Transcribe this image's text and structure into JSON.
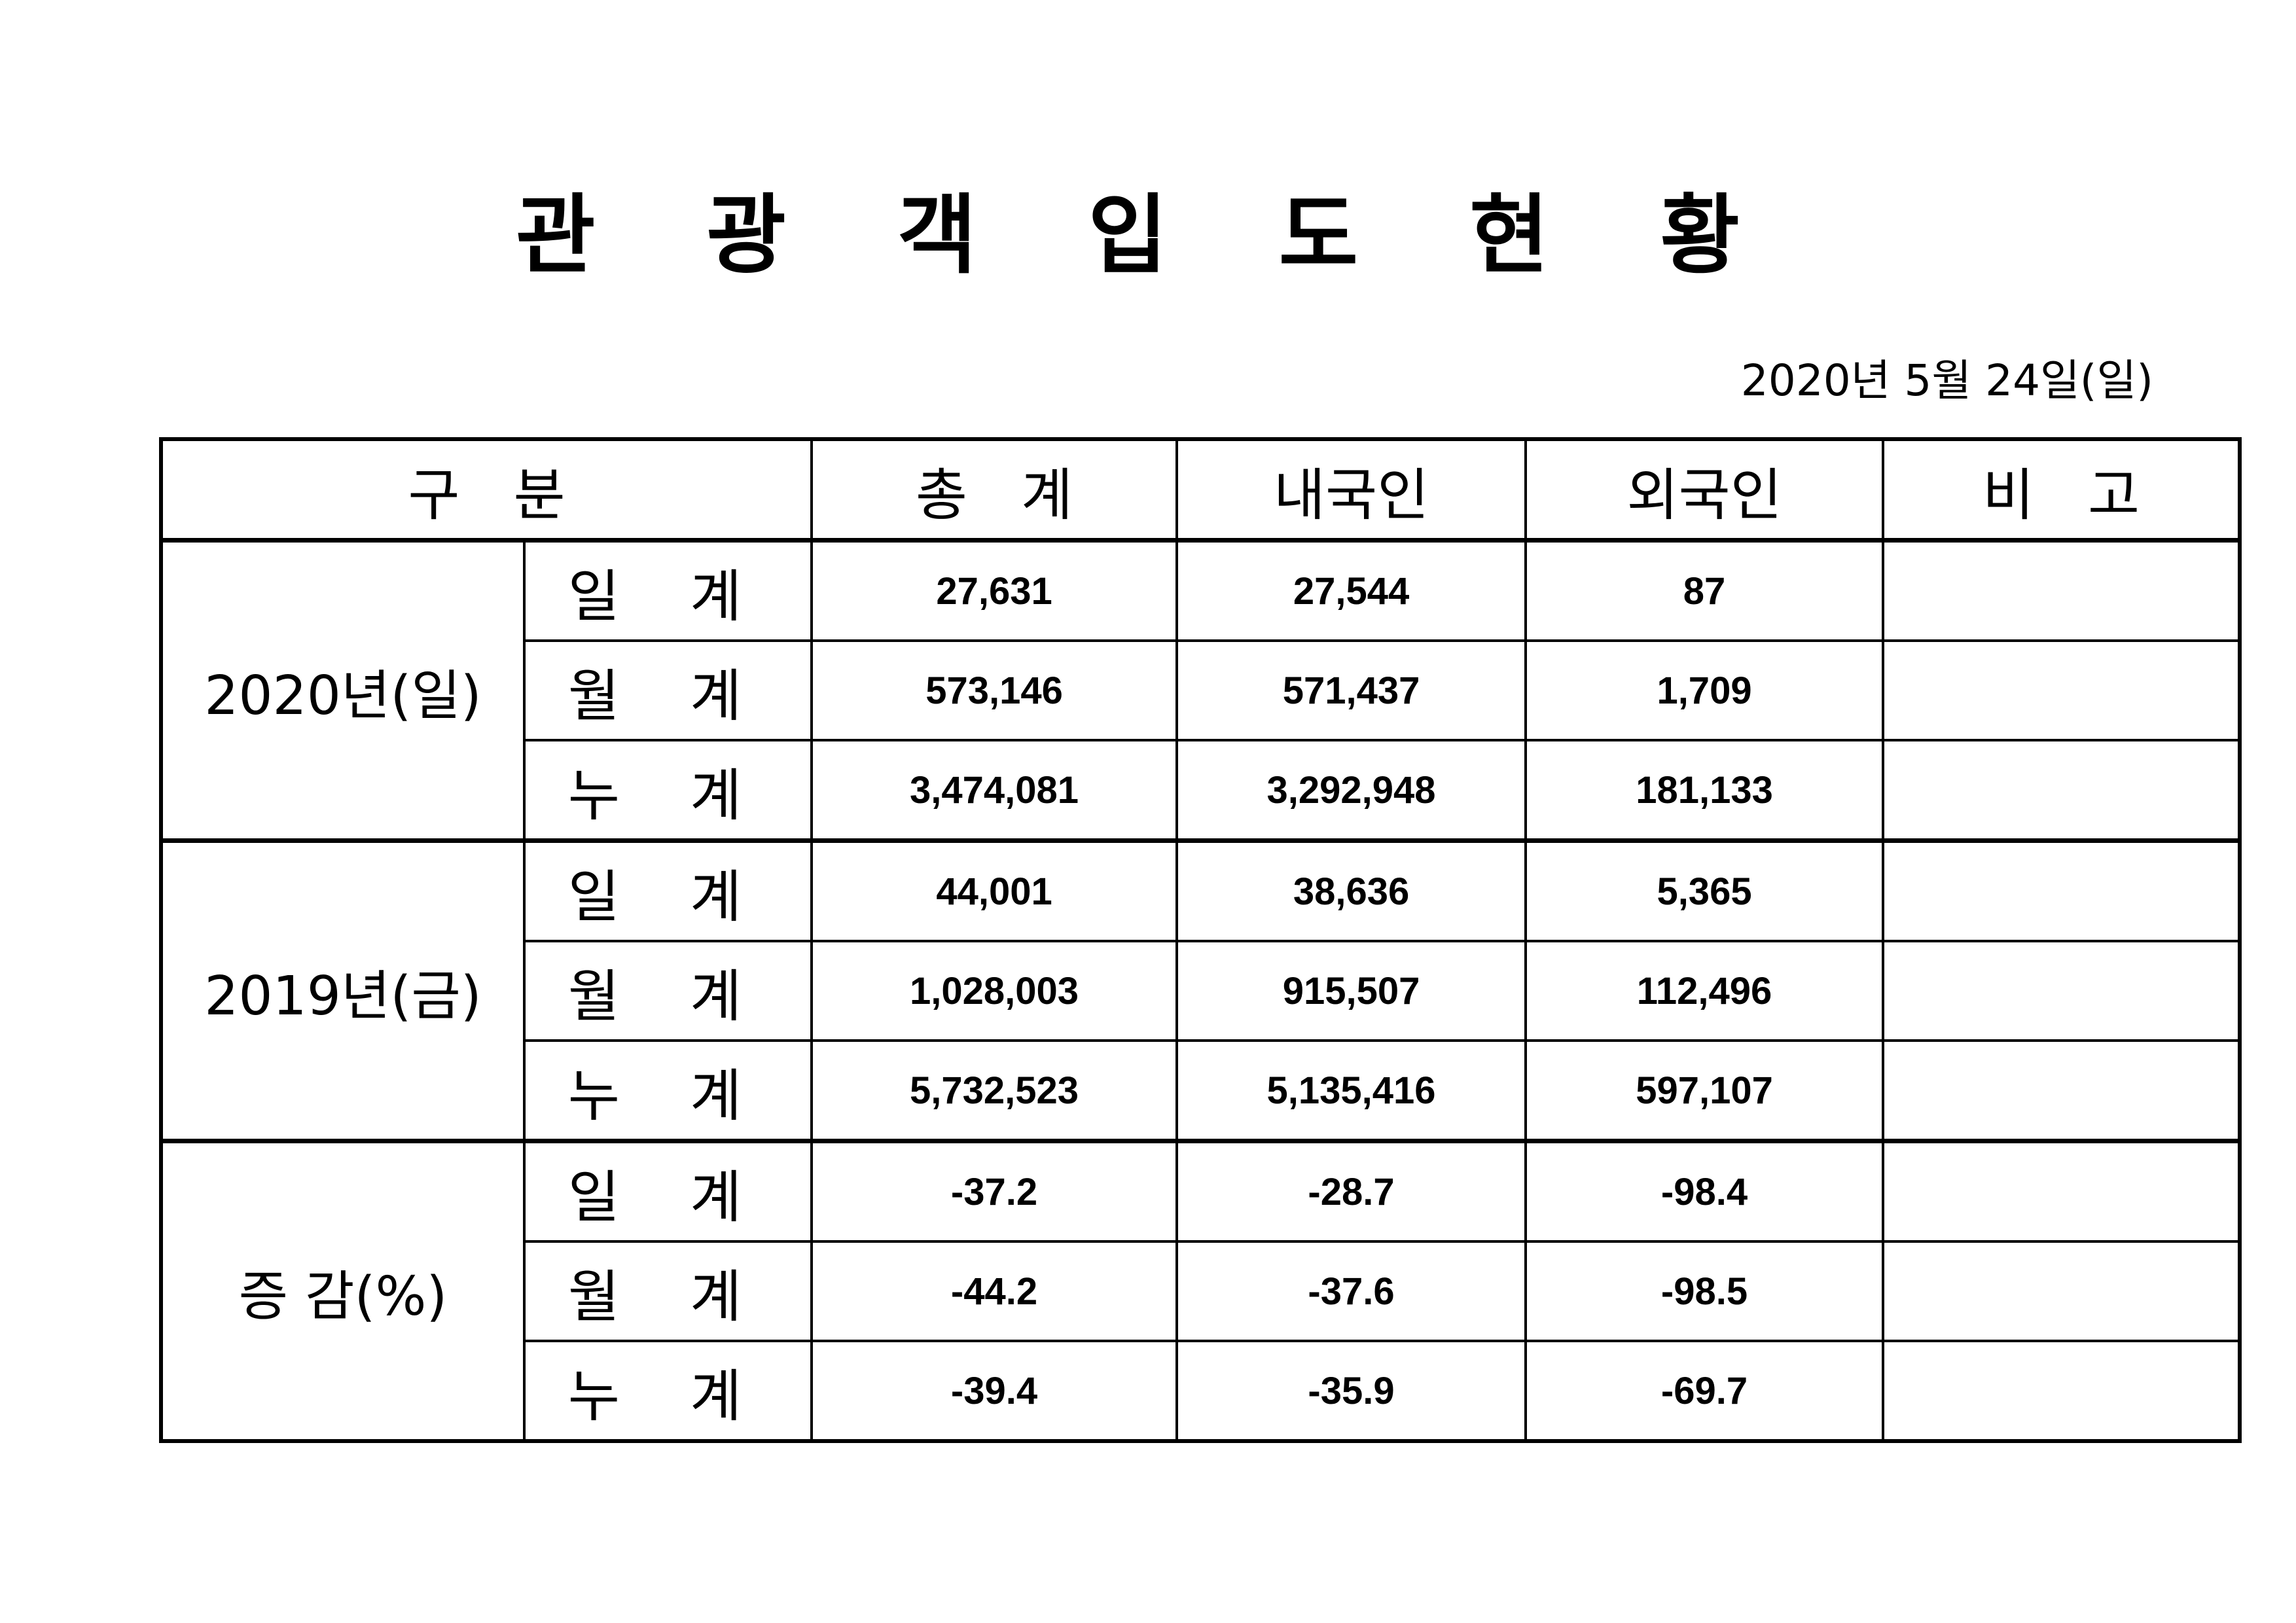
{
  "title": "관 광 객 입 도 현 황",
  "date": "2020년  5월  24일(일)",
  "table": {
    "headers": [
      "구   분",
      "총   계",
      "내국인",
      "외국인",
      "비   고"
    ],
    "groups": [
      {
        "label": "2020년(일)",
        "rows": [
          {
            "sub": "일 계",
            "total": "27,631",
            "domestic": "27,544",
            "foreign": "87",
            "note": ""
          },
          {
            "sub": "월 계",
            "total": "573,146",
            "domestic": "571,437",
            "foreign": "1,709",
            "note": ""
          },
          {
            "sub": "누 계",
            "total": "3,474,081",
            "domestic": "3,292,948",
            "foreign": "181,133",
            "note": ""
          }
        ]
      },
      {
        "label": "2019년(금)",
        "rows": [
          {
            "sub": "일 계",
            "total": "44,001",
            "domestic": "38,636",
            "foreign": "5,365",
            "note": ""
          },
          {
            "sub": "월 계",
            "total": "1,028,003",
            "domestic": "915,507",
            "foreign": "112,496",
            "note": ""
          },
          {
            "sub": "누 계",
            "total": "5,732,523",
            "domestic": "5,135,416",
            "foreign": "597,107",
            "note": ""
          }
        ]
      },
      {
        "label": "증 감(%)",
        "rows": [
          {
            "sub": "일 계",
            "total": "-37.2",
            "domestic": "-28.7",
            "foreign": "-98.4",
            "note": ""
          },
          {
            "sub": "월 계",
            "total": "-44.2",
            "domestic": "-37.6",
            "foreign": "-98.5",
            "note": ""
          },
          {
            "sub": "누 계",
            "total": "-39.4",
            "domestic": "-35.9",
            "foreign": "-69.7",
            "note": ""
          }
        ]
      }
    ]
  }
}
